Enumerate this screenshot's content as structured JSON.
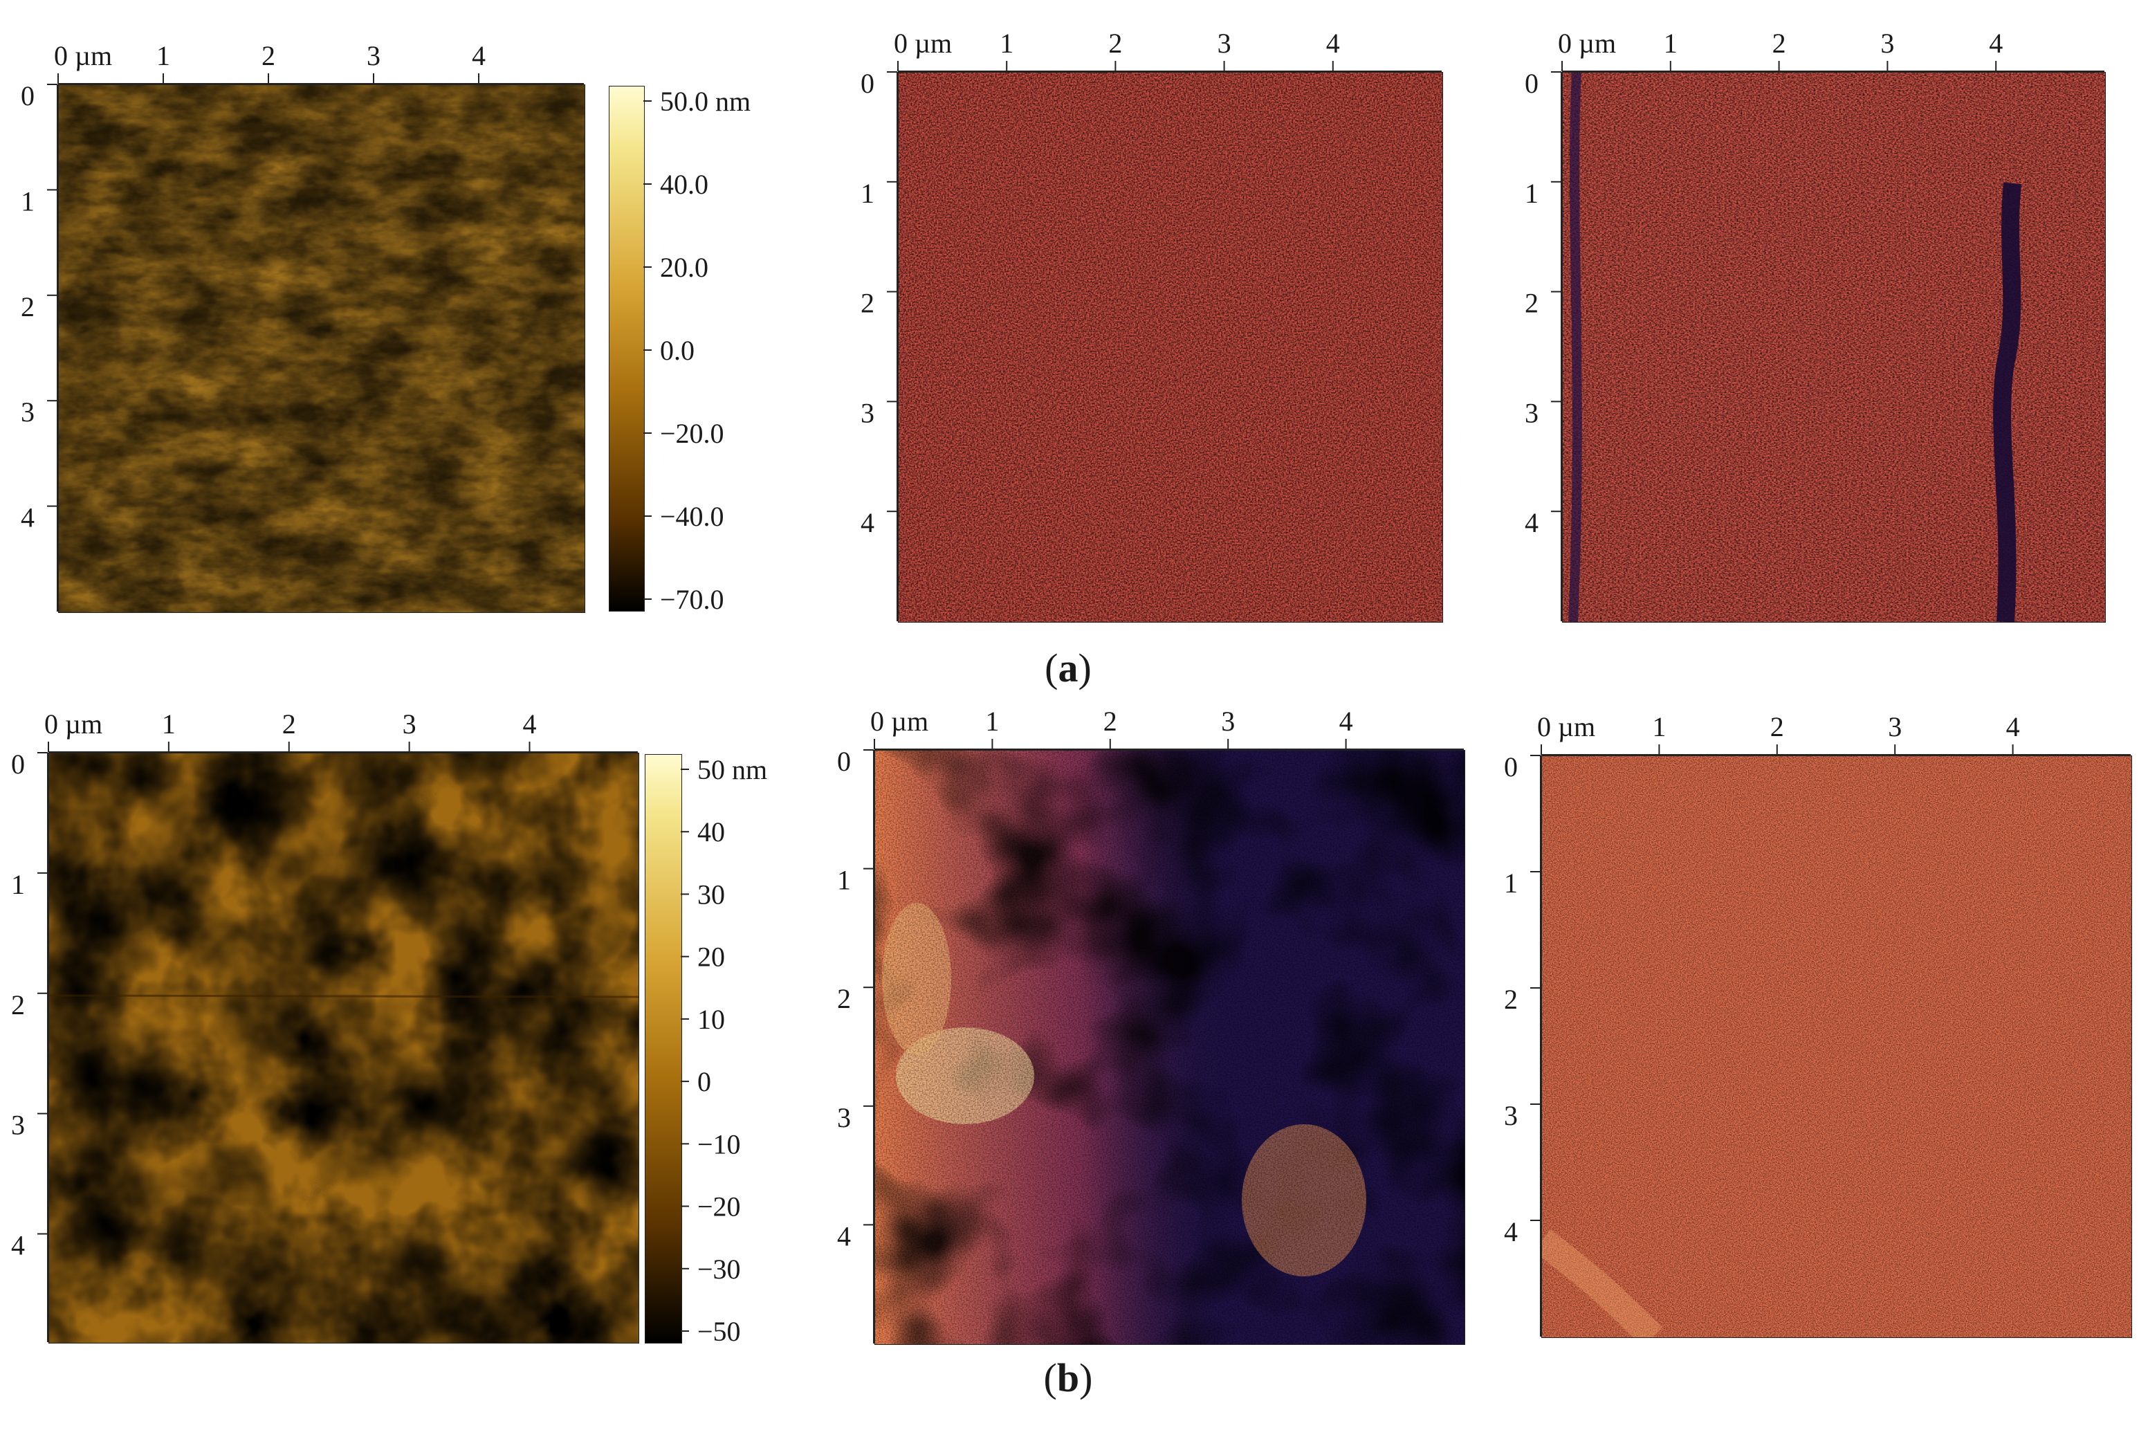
{
  "axis_unit_label": "0 µm",
  "axis_x_ticks": [
    "1",
    "2",
    "3",
    "4"
  ],
  "axis_y_ticks": [
    "0",
    "1",
    "2",
    "3",
    "4"
  ],
  "rows": [
    {
      "caption": {
        "open": "(",
        "letter": "a",
        "close": ")"
      },
      "colorbar": {
        "labels": [
          "50.0 nm",
          "40.0",
          "20.0",
          "0.0",
          "−20.0",
          "−40.0",
          "−70.0"
        ]
      }
    },
    {
      "caption": {
        "open": "(",
        "letter": "b",
        "close": ")"
      },
      "colorbar": {
        "labels": [
          "50 nm",
          "40",
          "30",
          "20",
          "10",
          "0",
          "−10",
          "−20",
          "−30",
          "−50"
        ]
      }
    }
  ],
  "colors": {
    "height_map": [
      "#000000",
      "#5a3300",
      "#a8700f",
      "#d7a534",
      "#f4e58b",
      "#fffbd0"
    ],
    "phase_map": [
      "#180f3a",
      "#3e1f6a",
      "#8a3a6b",
      "#e05a4a",
      "#f79a55",
      "#fde0a0"
    ],
    "frame": "#222222"
  }
}
